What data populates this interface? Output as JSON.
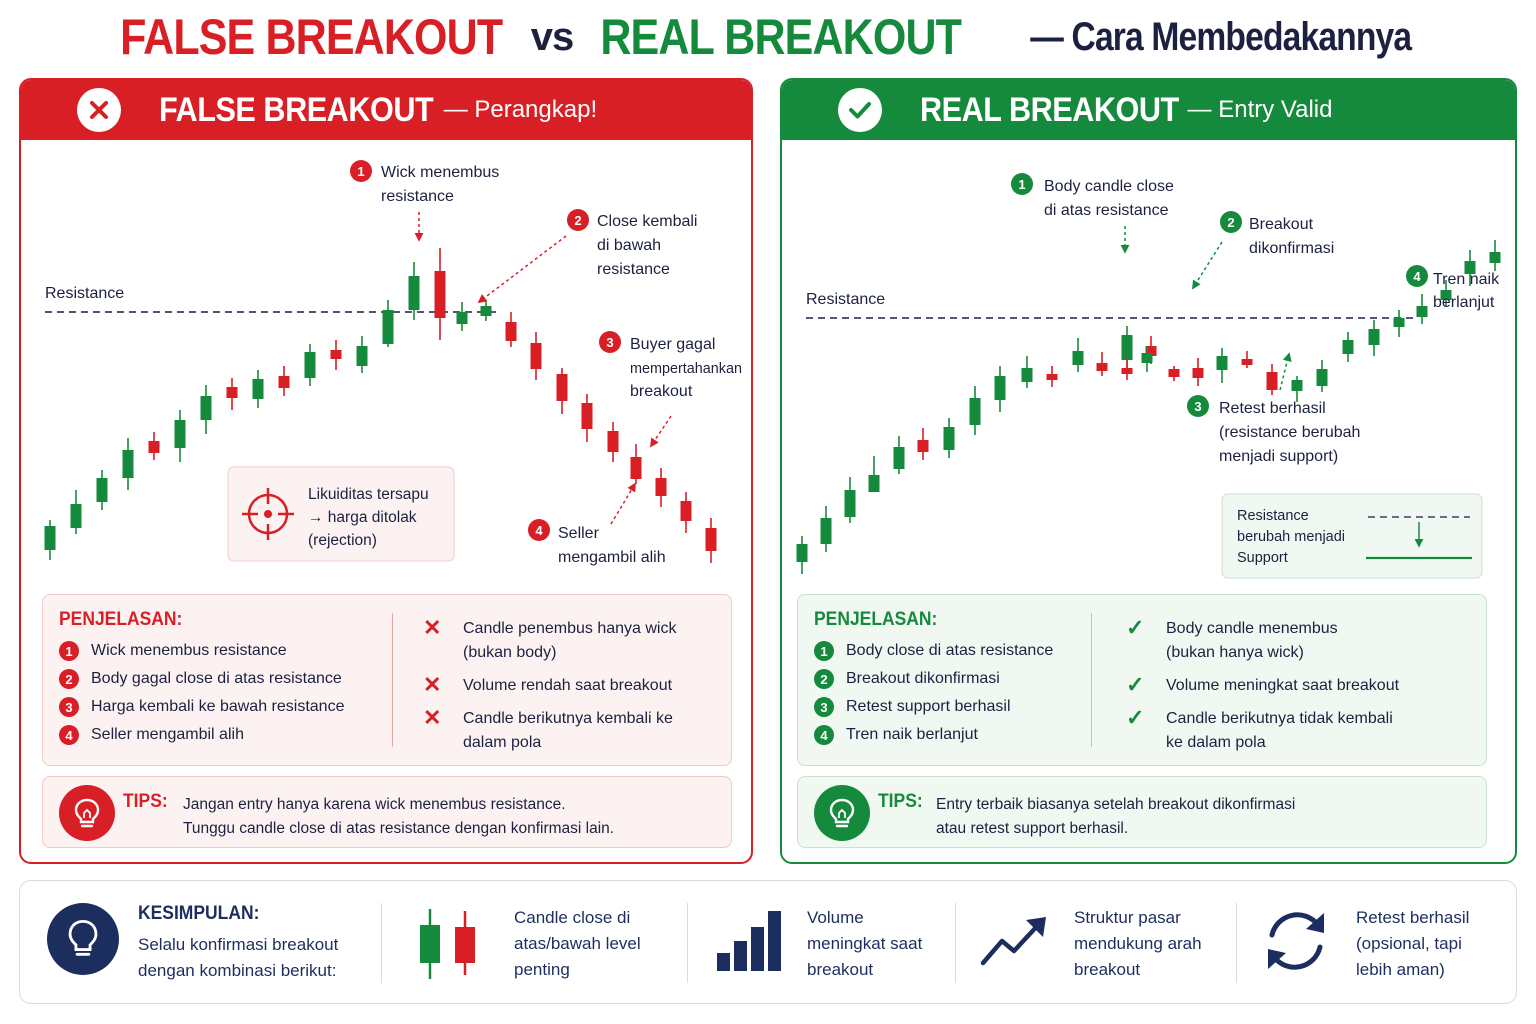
{
  "headline": {
    "false_part": "FALSE BREAKOUT",
    "vs": "vs",
    "real_part": "REAL BREAKOUT",
    "subtitle": "— Cara Membedakannya"
  },
  "colors": {
    "red": "#d81f26",
    "green": "#168a3c",
    "navy": "#1c2e5e",
    "dashed_line": "#3a3f6b"
  },
  "false_panel": {
    "icon": "x-circle-icon",
    "title": "FALSE BREAKOUT",
    "subtitle": "— Perangkap!",
    "resistance_label": "Resistance",
    "annotations": {
      "a1": {
        "num": "1",
        "line1": "Wick menembus",
        "line2": "resistance"
      },
      "a2": {
        "num": "2",
        "line1": "Close kembali",
        "line2": "di bawah",
        "line3": "resistance"
      },
      "a3": {
        "num": "3",
        "line1": "Buyer gagal",
        "line2": "mempertahankan",
        "line3": "breakout"
      },
      "a4": {
        "num": "4",
        "line1": "Seller",
        "line2": "mengambil alih"
      }
    },
    "liquidity_note": {
      "icon": "target-icon",
      "line1": "Likuiditas tersapu",
      "line2": "→ harga ditolak",
      "line3": "(rejection)"
    },
    "explain_title": "PENJELASAN:",
    "steps": [
      {
        "num": "1",
        "text": "Wick menembus resistance"
      },
      {
        "num": "2",
        "text": "Body gagal close di atas resistance"
      },
      {
        "num": "3",
        "text": "Harga kembali ke bawah resistance"
      },
      {
        "num": "4",
        "text": "Seller mengambil alih"
      }
    ],
    "checks": [
      {
        "icon": "x-icon",
        "line1": "Candle penembus hanya wick",
        "line2": "(bukan body)"
      },
      {
        "icon": "x-icon",
        "line1": "Volume rendah saat breakout",
        "line2": ""
      },
      {
        "icon": "x-icon",
        "line1": "Candle berikutnya kembali ke",
        "line2": "dalam pola"
      }
    ],
    "tips_icon": "lightbulb-icon",
    "tips_label": "TIPS:",
    "tips_line1": "Jangan entry hanya karena wick menembus resistance.",
    "tips_line2": "Tunggu candle close di atas resistance dengan konfirmasi lain."
  },
  "real_panel": {
    "icon": "check-circle-icon",
    "title": "REAL BREAKOUT",
    "subtitle": "— Entry Valid",
    "resistance_label": "Resistance",
    "annotations": {
      "a1": {
        "num": "1",
        "line1": "Body candle close",
        "line2": "di atas resistance"
      },
      "a2": {
        "num": "2",
        "line1": "Breakout",
        "line2": "dikonfirmasi"
      },
      "a3": {
        "num": "3",
        "line1": "Retest berhasil",
        "line2": "(resistance berubah",
        "line3": "menjadi support)"
      },
      "a4": {
        "num": "4",
        "line1": "Tren naik",
        "line2": "berlanjut"
      }
    },
    "sr_note": {
      "line1": "Resistance",
      "line2": "berubah menjadi",
      "line3": "Support"
    },
    "explain_title": "PENJELASAN:",
    "steps": [
      {
        "num": "1",
        "text": "Body close di atas resistance"
      },
      {
        "num": "2",
        "text": "Breakout dikonfirmasi"
      },
      {
        "num": "3",
        "text": "Retest support berhasil"
      },
      {
        "num": "4",
        "text": "Tren naik berlanjut"
      }
    ],
    "checks": [
      {
        "icon": "check-icon",
        "line1": "Body candle menembus",
        "line2": "(bukan hanya wick)"
      },
      {
        "icon": "check-icon",
        "line1": "Volume meningkat saat breakout",
        "line2": ""
      },
      {
        "icon": "check-icon",
        "line1": "Candle berikutnya tidak kembali",
        "line2": "ke dalam pola"
      }
    ],
    "tips_icon": "lightbulb-icon",
    "tips_label": "TIPS:",
    "tips_line1": "Entry terbaik biasanya setelah breakout dikonfirmasi",
    "tips_line2": "atau retest support berhasil."
  },
  "conclusion": {
    "icon": "lightbulb-icon",
    "title": "KESIMPULAN:",
    "line1": "Selalu konfirmasi breakout",
    "line2": "dengan kombinasi berikut:",
    "items": [
      {
        "icon": "candles-icon",
        "line1": "Candle close di",
        "line2": "atas/bawah level",
        "line3": "penting"
      },
      {
        "icon": "volume-bars-icon",
        "line1": "Volume",
        "line2": "meningkat saat",
        "line3": "breakout"
      },
      {
        "icon": "trend-arrow-icon",
        "line1": "Struktur pasar",
        "line2": "mendukung arah",
        "line3": "breakout"
      },
      {
        "icon": "cycle-arrows-icon",
        "line1": "Retest berhasil",
        "line2": "(opsional, tapi",
        "line3": "lebih aman)"
      }
    ]
  }
}
